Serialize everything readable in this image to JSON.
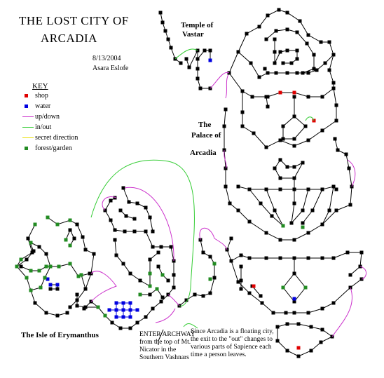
{
  "title": {
    "line1": "THE LOST CITY OF",
    "line2": "ARCADIA"
  },
  "date": "8/13/2004",
  "author": "Asara Eslofe",
  "key": {
    "heading": "KEY",
    "items": [
      {
        "label": "shop",
        "color": "#e00000",
        "kind": "square"
      },
      {
        "label": "water",
        "color": "#0000e0",
        "kind": "square"
      },
      {
        "label": "up/down",
        "color": "#cc33cc",
        "kind": "line"
      },
      {
        "label": "in/out",
        "color": "#33cc33",
        "kind": "line"
      },
      {
        "label": "secret direction",
        "color": "#e8e000",
        "kind": "line"
      },
      {
        "label": "forest/garden",
        "color": "#228b22",
        "kind": "square"
      }
    ]
  },
  "labels": {
    "temple": {
      "line1": "Temple of",
      "line2": "Vastar"
    },
    "palace": {
      "line1": "The",
      "line2": "Palace of",
      "line3": "Arcadia"
    },
    "isle": "The Isle of Erymanthus",
    "enter": "ENTER ARCHWAY from the top of Mt. Nicator in the Southern Vashnars",
    "floating": "Since Arcadia is a floating city, the exit to the \"out\" changes to various parts of Sapience each time a person leaves."
  },
  "colors": {
    "room": "#000000",
    "shop": "#e00000",
    "water": "#0000e0",
    "updown": "#cc33cc",
    "inout": "#33cc33",
    "forest": "#228b22"
  }
}
